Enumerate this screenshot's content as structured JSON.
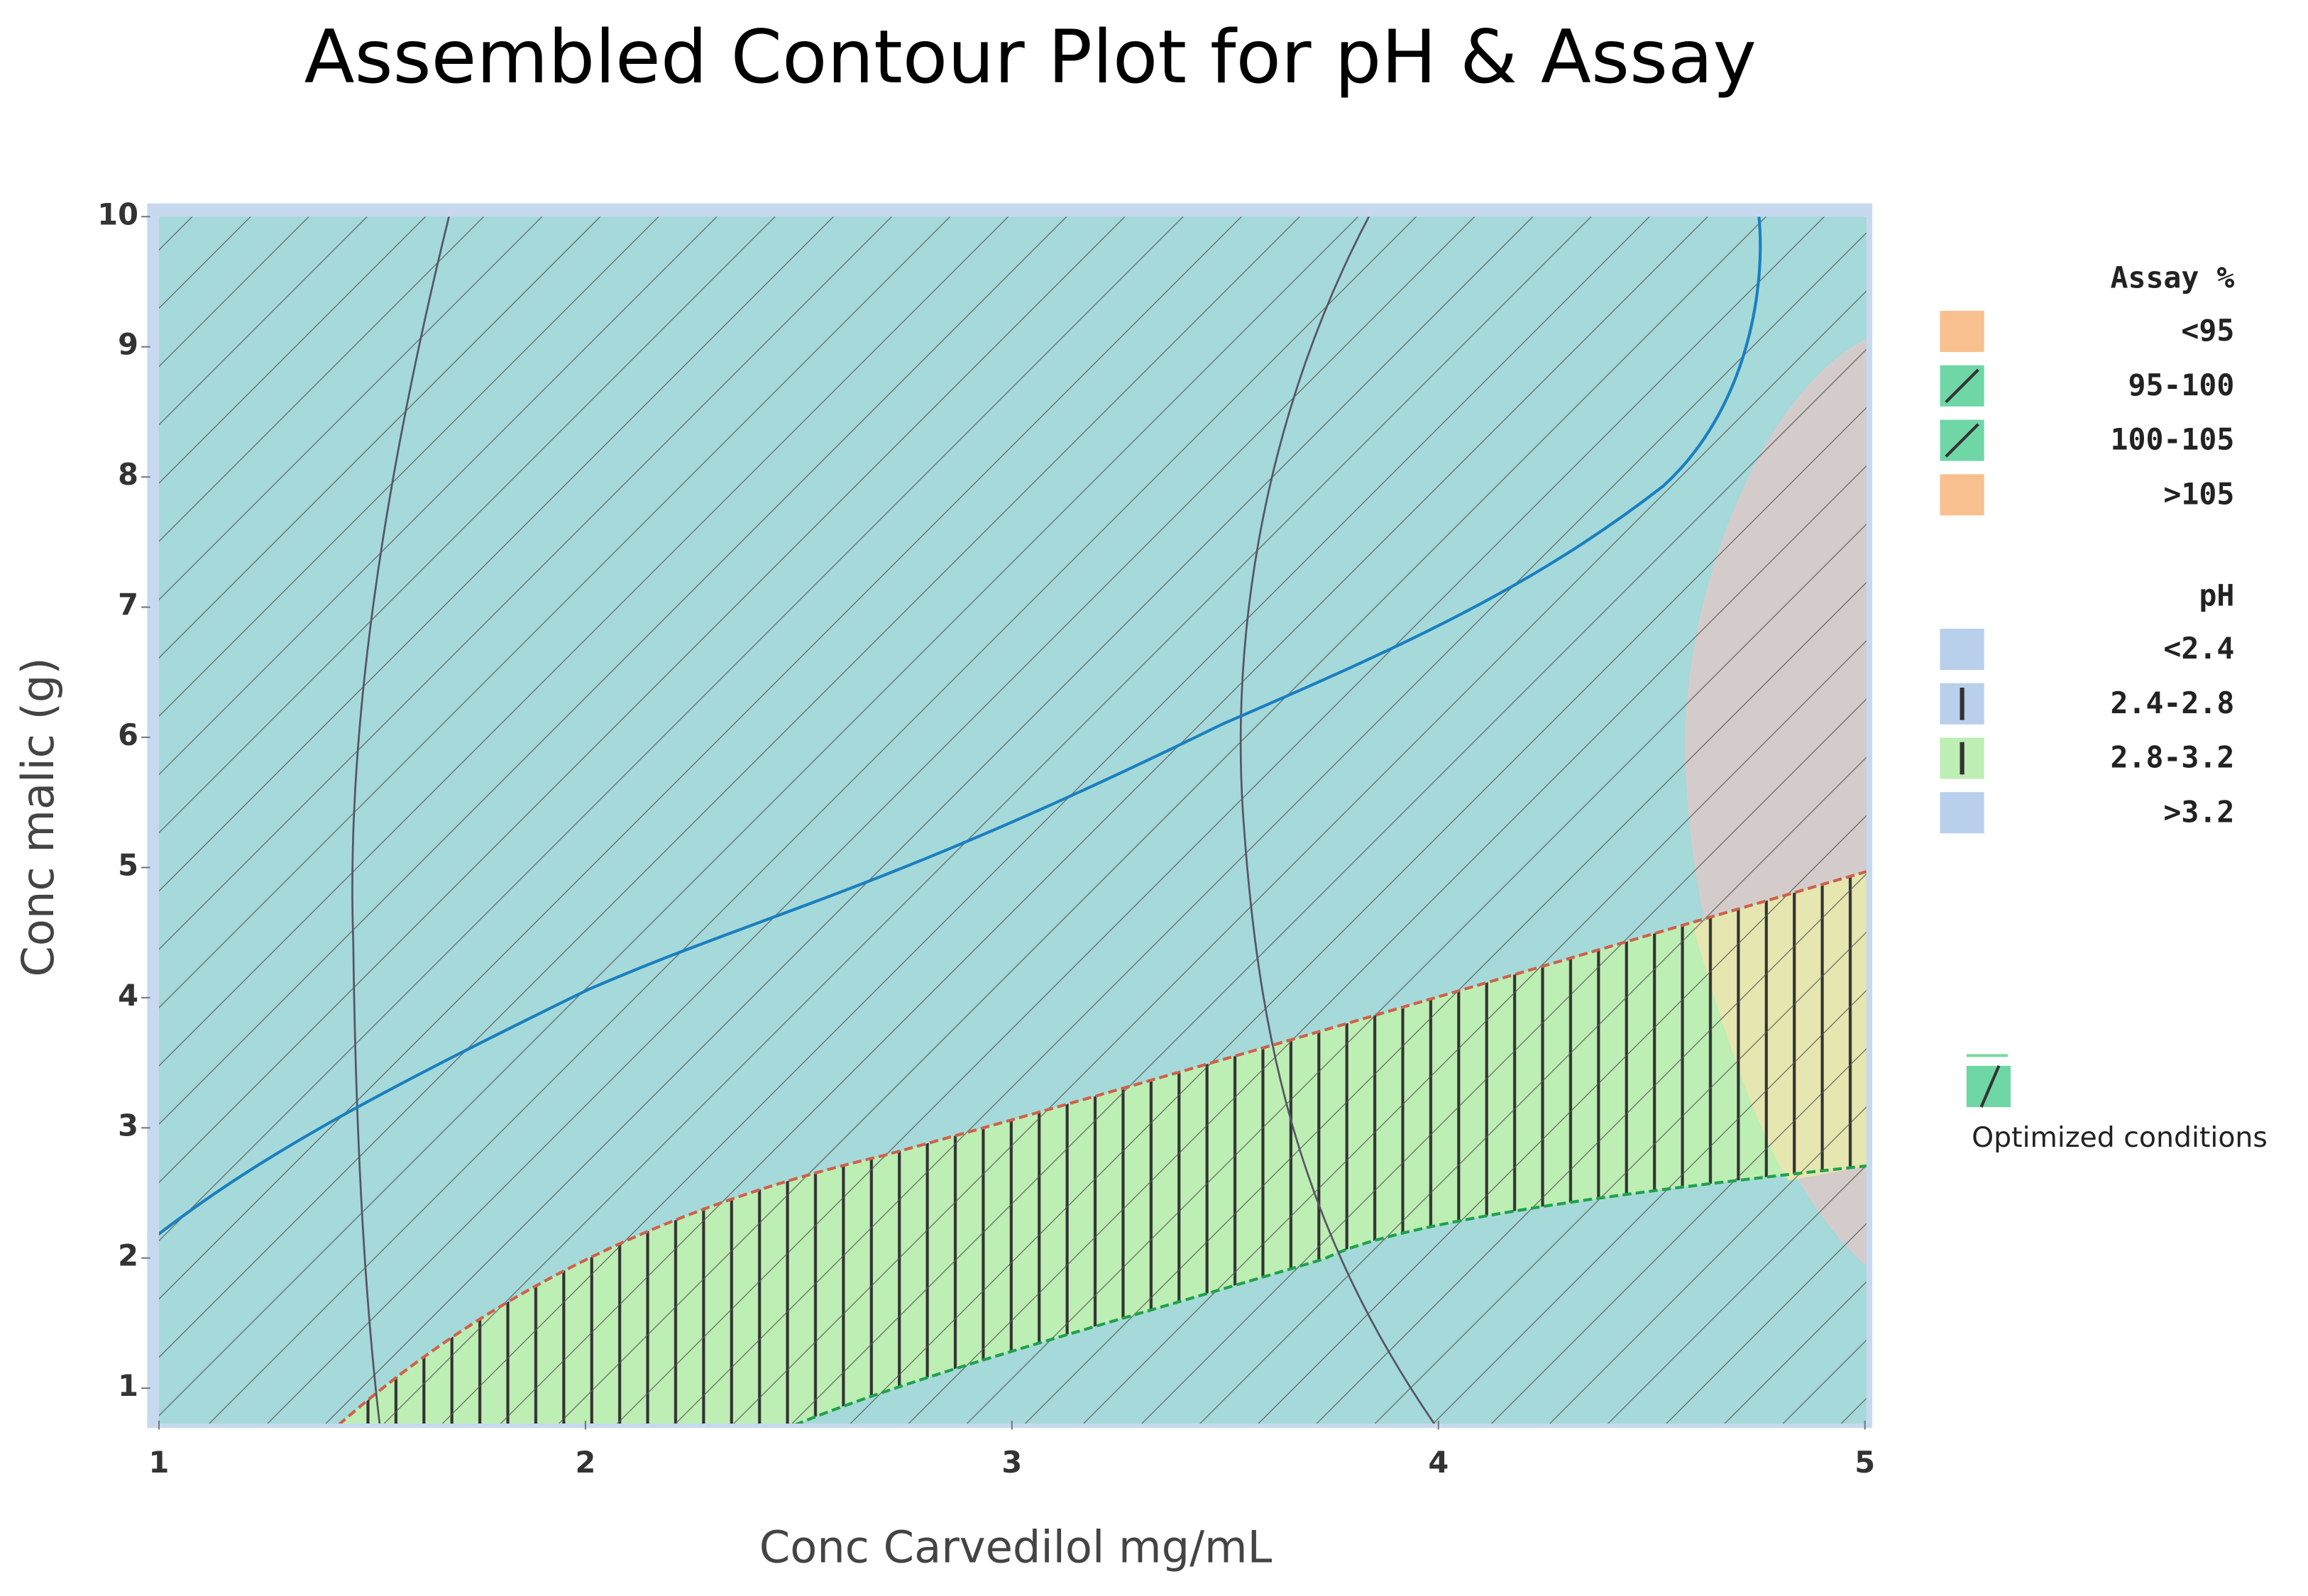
{
  "chart_data": {
    "type": "contour",
    "title": "Assembled Contour Plot for pH & Assay",
    "x_label": "Conc Carvedilol mg/mL",
    "y_label": "Conc malic (g)",
    "xlim": [
      1,
      5
    ],
    "ylim": [
      0.75,
      10
    ],
    "xticks": [
      1,
      2,
      3,
      4,
      5
    ],
    "yticks": [
      1,
      2,
      3,
      4,
      5,
      6,
      7,
      8,
      9,
      10
    ],
    "legends": [
      {
        "title": "Assay %",
        "items": [
          {
            "name": "<95",
            "color": "#f9c08f"
          },
          {
            "name": "95-100",
            "color": "#6fd6a6"
          },
          {
            "name": "100-105",
            "color": "#6fd6a6"
          },
          {
            "name": ">105",
            "color": "#f9c08f"
          }
        ]
      },
      {
        "title": "pH",
        "items": [
          {
            "name": "<2.4",
            "color": "#b8d0ec"
          },
          {
            "name": "2.4-2.8",
            "color": "#b8d0ec"
          },
          {
            "name": "2.8-3.2",
            "color": "#bdeeb3"
          },
          {
            "name": ">3.2",
            "color": "#b8d0ec"
          }
        ]
      }
    ],
    "annotation": "Optimized conditions"
  }
}
